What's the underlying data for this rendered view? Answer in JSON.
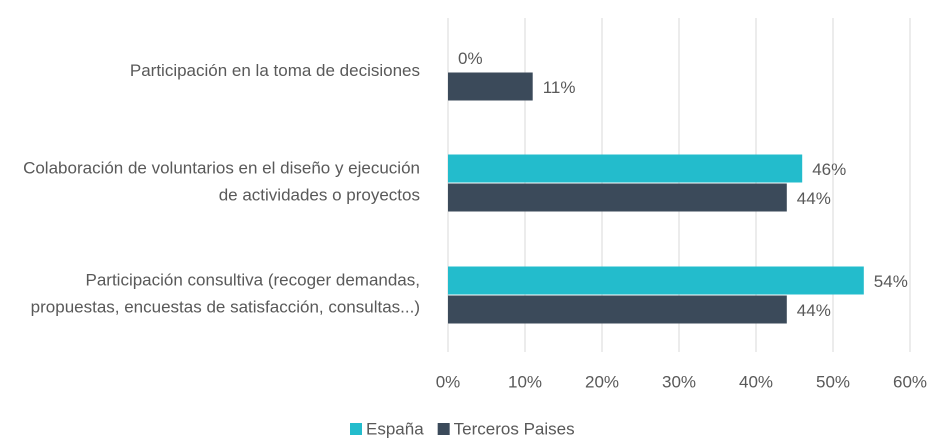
{
  "chart_data": {
    "type": "bar",
    "orientation": "horizontal",
    "categories": [
      "Participación en la toma de decisiones",
      "Colaboración de voluntarios en el diseño y ejecución de actividades o proyectos",
      "Participación consultiva (recoger demandas, propuestas, encuestas de satisfacción, consultas...)"
    ],
    "series": [
      {
        "name": "España",
        "color": "#23bccc",
        "values": [
          0,
          46,
          54
        ],
        "value_labels": [
          "0%",
          "46%",
          "54%"
        ]
      },
      {
        "name": "Terceros Paises",
        "color": "#3b4a5a",
        "values": [
          11,
          44,
          44
        ],
        "value_labels": [
          "11%",
          "44%",
          "44%"
        ]
      }
    ],
    "xlim": [
      0,
      60
    ],
    "xticks": [
      {
        "value": 0,
        "label": "0%"
      },
      {
        "value": 10,
        "label": "10%"
      },
      {
        "value": 20,
        "label": "20%"
      },
      {
        "value": 30,
        "label": "30%"
      },
      {
        "value": 40,
        "label": "40%"
      },
      {
        "value": 50,
        "label": "50%"
      },
      {
        "value": 60,
        "label": "60%"
      }
    ],
    "grid": true,
    "legend": "bottom"
  }
}
